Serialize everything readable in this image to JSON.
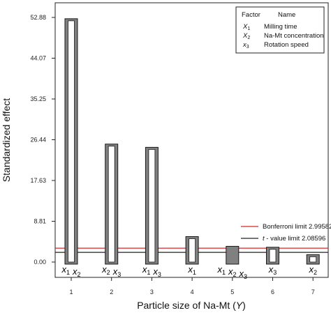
{
  "chart_data": {
    "type": "bar",
    "ylabel": "Standardized  effect",
    "xlabel_prefix": "Particle size of Na-Mt (",
    "xlabel_var": "Y",
    "xlabel_suffix": ")",
    "yticks": [
      "0.00",
      "8.81",
      "17.63",
      "26.44",
      "35.25",
      "44.07",
      "52.88"
    ],
    "ytick_values": [
      0,
      8.81,
      17.63,
      26.44,
      35.25,
      44.07,
      52.88
    ],
    "ylim": [
      -3.6,
      55.5
    ],
    "categories": [
      "1",
      "2",
      "3",
      "4",
      "5",
      "6",
      "7"
    ],
    "bars": [
      {
        "x": "1",
        "value": 52.6,
        "label": [
          {
            "s": "x",
            "sub": "1"
          },
          {
            "s": "x",
            "sub": "2"
          }
        ],
        "filled": false
      },
      {
        "x": "2",
        "value": 25.5,
        "label": [
          {
            "s": "x",
            "sub": "2"
          },
          {
            "s": "x",
            "sub": "3"
          }
        ],
        "filled": false
      },
      {
        "x": "3",
        "value": 24.8,
        "label": [
          {
            "s": "x",
            "sub": "1"
          },
          {
            "s": "x",
            "sub": "3"
          }
        ],
        "filled": false
      },
      {
        "x": "4",
        "value": 5.5,
        "label": [
          {
            "s": "x",
            "sub": "1"
          }
        ],
        "filled": false
      },
      {
        "x": "5",
        "value": 3.4,
        "label": [
          {
            "s": "x",
            "sub": "1"
          },
          {
            "s": "x",
            "sub": "2"
          },
          {
            "s": "x",
            "sub": "3"
          }
        ],
        "filled": true
      },
      {
        "x": "6",
        "value": 3.2,
        "label": [
          {
            "s": "x",
            "sub": "3"
          }
        ],
        "filled": false
      },
      {
        "x": "7",
        "value": 1.6,
        "label": [
          {
            "s": "x",
            "sub": "2"
          }
        ],
        "filled": false
      }
    ],
    "reference_lines": [
      {
        "name": "Bonferroni limit 2.99582",
        "value": 2.99582,
        "color": "#d62728"
      },
      {
        "name": "t - value limit 2.08596",
        "name_italic": "t",
        "name_rest": " - value limit 2.08596",
        "value": 2.08596,
        "color": "#222222"
      }
    ],
    "factor_table": {
      "header_factor": "Factor",
      "header_name": "Name",
      "rows": [
        {
          "symbol": "X",
          "sub": "1",
          "name": "Milling time"
        },
        {
          "symbol": "X",
          "sub": "2",
          "name": "Na-Mt concentration"
        },
        {
          "symbol": "x",
          "sub": "3",
          "name": "Rotation speed"
        }
      ]
    },
    "legend_placement": "bottom-right",
    "grid": false,
    "colors": {
      "bar_fill": "#808080",
      "bar_inner": "#ffffff",
      "bar_edge": "#1a1a1a"
    }
  }
}
